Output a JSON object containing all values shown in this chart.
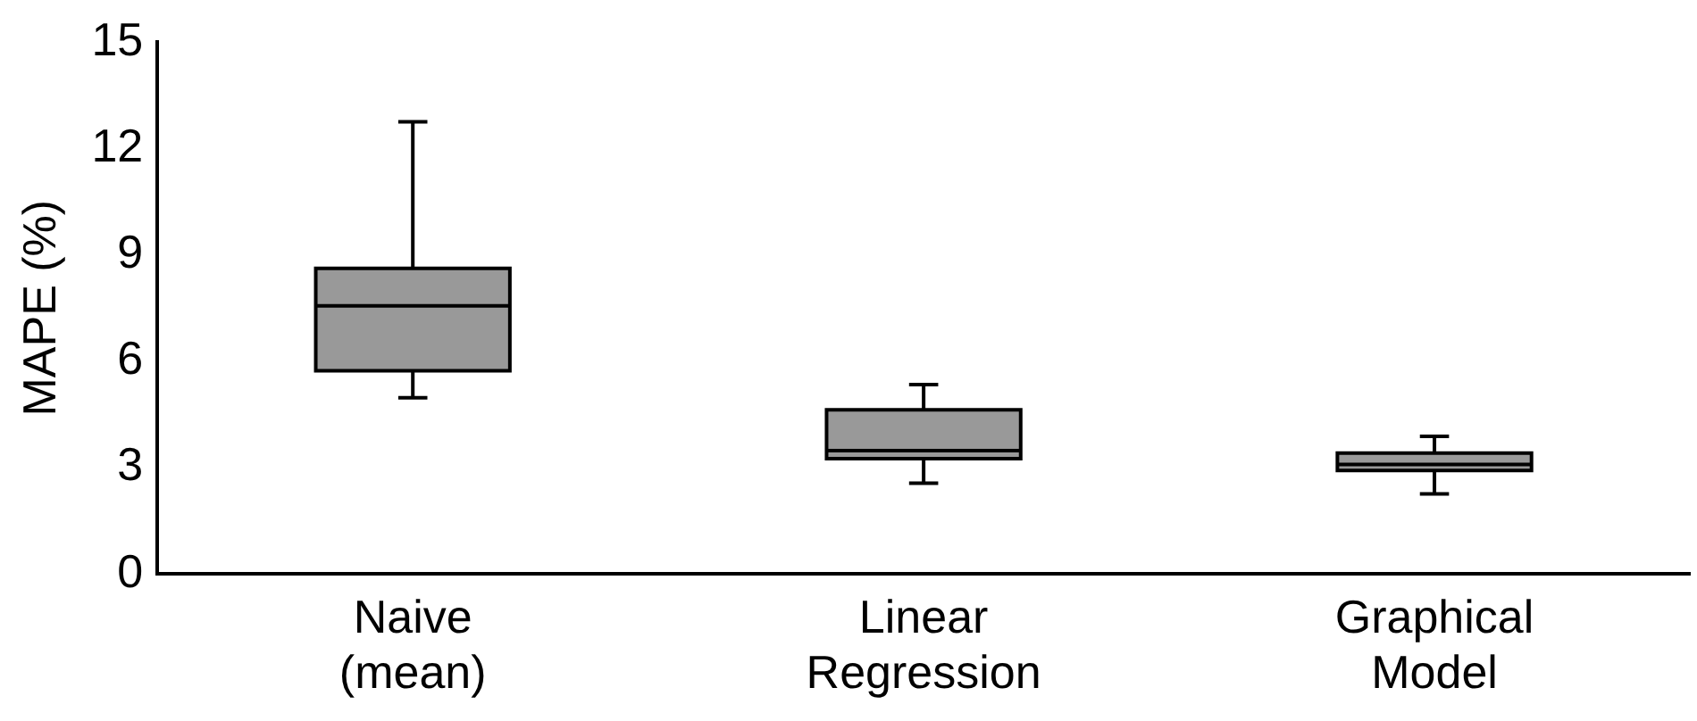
{
  "chart_data": {
    "type": "box",
    "ylabel": "MAPE (%)",
    "categories": [
      "Naive\n(mean)",
      "Linear\nRegression",
      "Graphical\nModel"
    ],
    "color": "#999999",
    "ylim": [
      0,
      15
    ],
    "yticks": [
      0,
      3,
      6,
      9,
      12,
      15
    ],
    "grid": false,
    "legend": false,
    "boxes": [
      {
        "low": 4.97,
        "q1": 5.73,
        "median": 7.56,
        "q3": 8.62,
        "high": 12.75
      },
      {
        "low": 2.56,
        "q1": 3.25,
        "median": 3.48,
        "q3": 4.63,
        "high": 5.34
      },
      {
        "low": 2.26,
        "q1": 2.92,
        "median": 3.09,
        "q3": 3.41,
        "high": 3.88
      }
    ]
  }
}
